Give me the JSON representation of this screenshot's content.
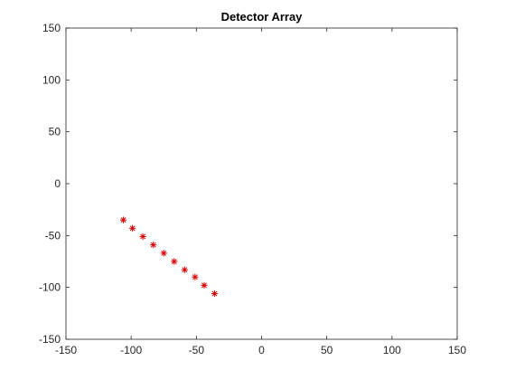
{
  "chart_data": {
    "type": "scatter",
    "title": "Detector Array",
    "xlabel": "",
    "ylabel": "",
    "xlim": [
      -150,
      150
    ],
    "ylim": [
      -150,
      150
    ],
    "xticks": [
      -150,
      -100,
      -50,
      0,
      50,
      100,
      150
    ],
    "yticks": [
      -150,
      -100,
      -50,
      0,
      50,
      100,
      150
    ],
    "grid": false,
    "series": [
      {
        "marker": "asterisk",
        "color": "#d40000",
        "x": [
          -106,
          -99,
          -91,
          -83,
          -75,
          -67,
          -59,
          -51,
          -44,
          -36
        ],
        "y": [
          -35,
          -43,
          -51,
          -59,
          -67,
          -75,
          -83,
          -90,
          -98,
          -106
        ]
      }
    ]
  }
}
